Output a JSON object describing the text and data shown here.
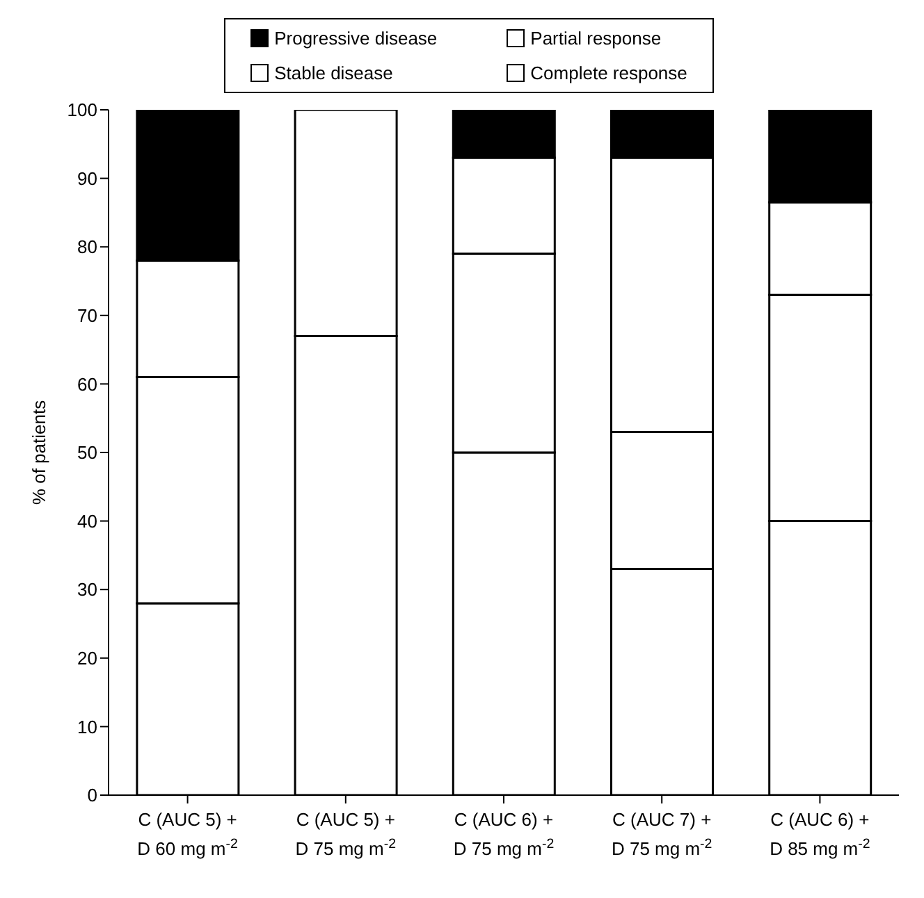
{
  "chart_data": {
    "type": "bar",
    "stacked": true,
    "ylabel": "% of patients",
    "categories": [
      "C (AUC 5) +\nD 60 mg m$^{-2}$",
      "C (AUC 5) +\nD 75 mg m$^{-2}$",
      "C (AUC 6) +\nD 75 mg m$^{-2}$",
      "C (AUC 7) +\nD 75 mg m$^{-2}$",
      "C (AUC 6) +\nD 85 mg m$^{-2}$"
    ],
    "series": [
      {
        "name": "Complete response",
        "color": "#ffffff",
        "values": [
          28,
          0,
          50,
          33,
          40
        ]
      },
      {
        "name": "Partial response",
        "color": "#ffffff",
        "values": [
          33,
          67,
          29,
          20,
          33
        ]
      },
      {
        "name": "Stable disease",
        "color": "#ffffff",
        "values": [
          17,
          33,
          14,
          40,
          13.5
        ]
      },
      {
        "name": "Progressive disease",
        "color": "#000000",
        "values": [
          22,
          0,
          7,
          7,
          13.5
        ]
      }
    ],
    "ylim": [
      0,
      100
    ],
    "yticks": [
      0,
      10,
      20,
      30,
      40,
      50,
      60,
      70,
      80,
      90,
      100
    ],
    "grid": false,
    "legend": "top"
  }
}
